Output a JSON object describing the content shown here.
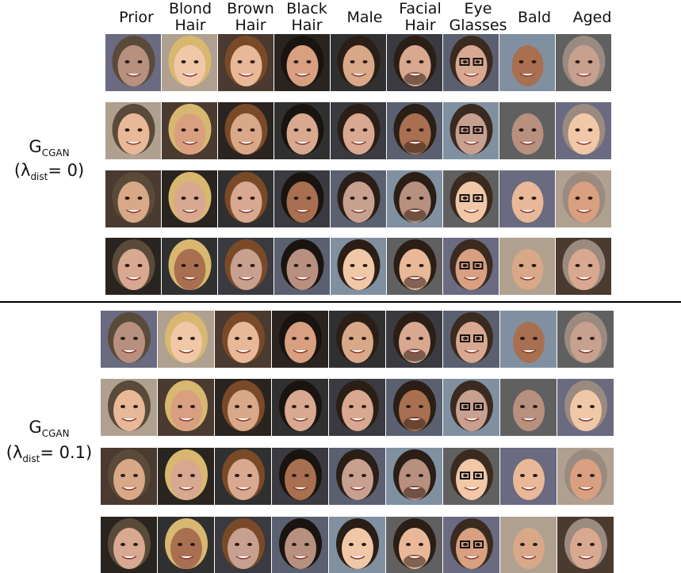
{
  "column_headers": [
    [
      "Prior"
    ],
    [
      "Blond",
      "Hair"
    ],
    [
      "Brown",
      "Hair"
    ],
    [
      "Black",
      "Hair"
    ],
    [
      "Male"
    ],
    [
      "Facial",
      "Hair"
    ],
    [
      "Eye",
      "Glasses"
    ],
    [
      "Bald"
    ],
    [
      "Aged"
    ]
  ],
  "sections": [
    {
      "label": {
        "symbol": "G",
        "symbol_sub": "CGAN",
        "param_open": "(λ",
        "param_sub": "dist",
        "param_close": "= 0)"
      }
    },
    {
      "label": {
        "symbol": "G",
        "symbol_sub": "CGAN",
        "param_open": "(λ",
        "param_sub": "dist",
        "param_close": "= 0.1)"
      }
    }
  ]
}
